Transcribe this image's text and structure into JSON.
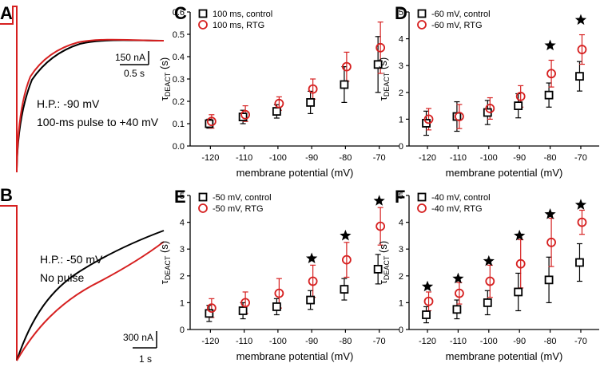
{
  "panel_letters": [
    "A",
    "B",
    "C",
    "D",
    "E",
    "F"
  ],
  "trace_panels": [
    {
      "letter": "A",
      "scale_current": "150 nA",
      "scale_time": "0.5 s",
      "annotation_lines": [
        "H.P.: -90 mV",
        "100-ms pulse to +40 mV"
      ],
      "colors": {
        "control": "#000000",
        "rtg": "#d62020"
      }
    },
    {
      "letter": "B",
      "scale_current": "300 nA",
      "scale_time": "1 s",
      "annotation_lines": [
        "H.P.: -50 mV",
        "No pulse"
      ],
      "colors": {
        "control": "#000000",
        "rtg": "#d62020"
      }
    }
  ],
  "colors": {
    "control": "#000000",
    "rtg": "#d62020",
    "error_control": "#000000",
    "error_rtg": "#d62020"
  },
  "chart_data": [
    {
      "letter": "C",
      "type": "scatter",
      "xlabel": "membrane potential (mV)",
      "ylabel_main": "τ",
      "ylabel_sub": "DEACT",
      "ylabel_unit": " (s)",
      "categories": [
        "-120",
        "-110",
        "-100",
        "-90",
        "-80",
        "-70"
      ],
      "ylim": [
        0,
        0.6
      ],
      "yticks": [
        0,
        0.1,
        0.2,
        0.3,
        0.4,
        0.5,
        0.6
      ],
      "ytick_labels": [
        "0.0",
        "0.1",
        "0.2",
        "0.3",
        "0.4",
        "0.5",
        "0.6"
      ],
      "legend_position": "top-left",
      "series": [
        {
          "name": "100 ms, control",
          "marker": "square",
          "color": "#000000",
          "values": [
            0.1,
            0.13,
            0.155,
            0.195,
            0.275,
            0.365
          ],
          "err_up": [
            0.02,
            0.03,
            0.03,
            0.05,
            0.08,
            0.125
          ],
          "err_down": [
            0.02,
            0.03,
            0.03,
            0.05,
            0.08,
            0.125
          ]
        },
        {
          "name": "100 ms, RTG",
          "marker": "circle",
          "color": "#d62020",
          "values": [
            0.11,
            0.14,
            0.19,
            0.255,
            0.355,
            0.44
          ],
          "err_up": [
            0.03,
            0.04,
            0.03,
            0.045,
            0.065,
            0.115
          ],
          "err_down": [
            0.03,
            0.03,
            0.03,
            0.045,
            0.065,
            0.115
          ]
        }
      ],
      "stars": []
    },
    {
      "letter": "D",
      "type": "scatter",
      "xlabel": "membrane potential (mV)",
      "ylabel_main": "τ",
      "ylabel_sub": "DEACT",
      "ylabel_unit": " (s)",
      "categories": [
        "-120",
        "-110",
        "-100",
        "-90",
        "-80",
        "-70"
      ],
      "ylim": [
        0,
        5
      ],
      "yticks": [
        0,
        1,
        2,
        3,
        4,
        5
      ],
      "ytick_labels": [
        "0",
        "1",
        "2",
        "3",
        "4",
        "5"
      ],
      "legend_position": "top-left",
      "series": [
        {
          "name": "-60 mV, control",
          "marker": "square",
          "color": "#000000",
          "values": [
            0.85,
            1.1,
            1.25,
            1.5,
            1.9,
            2.6
          ],
          "err_up": [
            0.45,
            0.55,
            0.45,
            0.45,
            0.45,
            0.55
          ],
          "err_down": [
            0.45,
            0.55,
            0.45,
            0.45,
            0.45,
            0.55
          ]
        },
        {
          "name": "-60 mV, RTG",
          "marker": "circle",
          "color": "#d62020",
          "values": [
            1.0,
            1.1,
            1.4,
            1.85,
            2.7,
            3.6
          ],
          "err_up": [
            0.4,
            0.45,
            0.4,
            0.4,
            0.5,
            0.55
          ],
          "err_down": [
            0.4,
            0.45,
            0.4,
            0.4,
            0.5,
            0.55
          ]
        }
      ],
      "stars": [
        {
          "category": "-80",
          "value": 3.75
        },
        {
          "category": "-70",
          "value": 4.7
        }
      ]
    },
    {
      "letter": "E",
      "type": "scatter",
      "xlabel": "membrane potential (mV)",
      "ylabel_main": "τ",
      "ylabel_sub": "DEACT",
      "ylabel_unit": " (s)",
      "categories": [
        "-120",
        "-110",
        "-100",
        "-90",
        "-80",
        "-70"
      ],
      "ylim": [
        0,
        5
      ],
      "yticks": [
        0,
        1,
        2,
        3,
        4,
        5
      ],
      "ytick_labels": [
        "0",
        "1",
        "2",
        "3",
        "4",
        "5"
      ],
      "legend_position": "top-left",
      "series": [
        {
          "name": "-50 mV, control",
          "marker": "square",
          "color": "#000000",
          "values": [
            0.6,
            0.7,
            0.85,
            1.1,
            1.5,
            2.25
          ],
          "err_up": [
            0.3,
            0.3,
            0.3,
            0.35,
            0.4,
            0.55
          ],
          "err_down": [
            0.3,
            0.3,
            0.3,
            0.35,
            0.4,
            0.55
          ]
        },
        {
          "name": "-50 mV, RTG",
          "marker": "circle",
          "color": "#d62020",
          "values": [
            0.8,
            1.0,
            1.35,
            1.8,
            2.6,
            3.85
          ],
          "err_up": [
            0.35,
            0.4,
            0.55,
            0.6,
            0.65,
            0.7
          ],
          "err_down": [
            0.35,
            0.4,
            0.55,
            0.6,
            0.65,
            0.7
          ]
        }
      ],
      "stars": [
        {
          "category": "-90",
          "value": 2.65
        },
        {
          "category": "-80",
          "value": 3.5
        },
        {
          "category": "-70",
          "value": 4.8
        }
      ]
    },
    {
      "letter": "F",
      "type": "scatter",
      "xlabel": "membrane potential (mV)",
      "ylabel_main": "τ",
      "ylabel_sub": "DEACT",
      "ylabel_unit": " (s)",
      "categories": [
        "-120",
        "-110",
        "-100",
        "-90",
        "-80",
        "-70"
      ],
      "ylim": [
        0,
        5
      ],
      "yticks": [
        0,
        1,
        2,
        3,
        4,
        5
      ],
      "ytick_labels": [
        "0",
        "1",
        "2",
        "3",
        "4",
        "5"
      ],
      "legend_position": "top-left",
      "series": [
        {
          "name": "-40 mV, control",
          "marker": "square",
          "color": "#000000",
          "values": [
            0.55,
            0.75,
            1.0,
            1.4,
            1.85,
            2.5
          ],
          "err_up": [
            0.3,
            0.35,
            0.45,
            0.7,
            0.85,
            0.7
          ],
          "err_down": [
            0.3,
            0.35,
            0.45,
            0.7,
            0.85,
            0.7
          ]
        },
        {
          "name": "-40 mV, RTG",
          "marker": "circle",
          "color": "#d62020",
          "values": [
            1.05,
            1.35,
            1.8,
            2.45,
            3.25,
            4.0
          ],
          "err_up": [
            0.35,
            0.4,
            0.6,
            0.9,
            0.9,
            0.45
          ],
          "err_down": [
            0.35,
            0.4,
            0.6,
            0.9,
            0.9,
            0.45
          ]
        }
      ],
      "stars": [
        {
          "category": "-120",
          "value": 1.6
        },
        {
          "category": "-110",
          "value": 1.9
        },
        {
          "category": "-100",
          "value": 2.55
        },
        {
          "category": "-90",
          "value": 3.5
        },
        {
          "category": "-80",
          "value": 4.3
        },
        {
          "category": "-70",
          "value": 4.65
        }
      ]
    }
  ]
}
